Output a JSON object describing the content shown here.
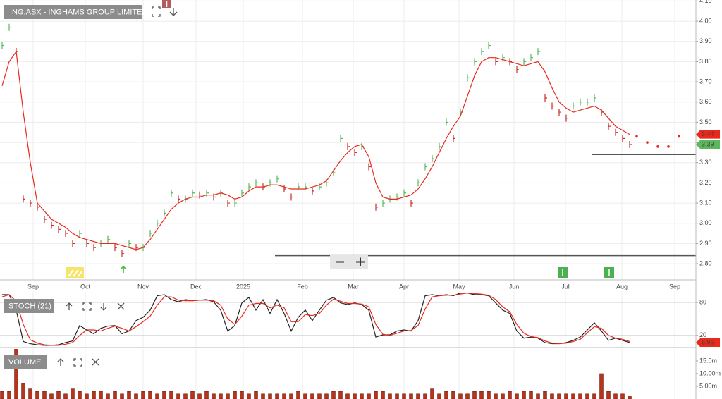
{
  "chart_data": [
    {
      "type": "line",
      "title": "ING.ASX - INGHAMS GROUP LIMITED",
      "xlim": [
        -0.3,
        98.4
      ],
      "xticks": [
        {
          "value": 4.4,
          "label": "Sep"
        },
        {
          "value": 11.8,
          "label": "Oct"
        },
        {
          "value": 20,
          "label": "Nov"
        },
        {
          "value": 27.5,
          "label": "Dec"
        },
        {
          "value": 34.2,
          "label": "2025"
        },
        {
          "value": 42.6,
          "label": "Feb"
        },
        {
          "value": 49.8,
          "label": "Mar"
        },
        {
          "value": 57,
          "label": "Apr"
        },
        {
          "value": 64.8,
          "label": "May"
        },
        {
          "value": 72.6,
          "label": "Jun"
        },
        {
          "value": 79.9,
          "label": "Jul"
        },
        {
          "value": 87.9,
          "label": "Aug"
        },
        {
          "value": 95.4,
          "label": "Sep"
        }
      ],
      "ylim": [
        2.72,
        4.105
      ],
      "yticks": [
        {
          "value": 2.8,
          "label": "2.80"
        },
        {
          "value": 2.9,
          "label": "2.90"
        },
        {
          "value": 3,
          "label": "3.00"
        },
        {
          "value": 3.1,
          "label": "3.10"
        },
        {
          "value": 3.2,
          "label": "3.20"
        },
        {
          "value": 3.3,
          "label": "3.30"
        },
        {
          "value": 3.4,
          "label": "3.40"
        },
        {
          "value": 3.5,
          "label": "3.50"
        },
        {
          "value": 3.6,
          "label": "3.60"
        },
        {
          "value": 3.7,
          "label": "3.70"
        },
        {
          "value": 3.8,
          "label": "3.80"
        },
        {
          "value": 3.9,
          "label": "3.90"
        },
        {
          "value": 4,
          "label": "4.00"
        },
        {
          "value": 4.1,
          "label": "4.10"
        }
      ],
      "grid": true,
      "series": [
        {
          "style": "bars",
          "color": "#5cb85c",
          "down_color": "#c9302c",
          "tag": true,
          "values": [
            3.88,
            3.97,
            3.85,
            3.12,
            3.1,
            3.08,
            3.02,
            2.99,
            2.97,
            2.95,
            2.9,
            2.95,
            2.9,
            2.88,
            2.9,
            2.92,
            2.88,
            2.85,
            2.9,
            2.88,
            2.88,
            2.95,
            3.0,
            3.05,
            3.15,
            3.12,
            3.12,
            3.15,
            3.14,
            3.15,
            3.13,
            3.15,
            3.1,
            3.1,
            3.15,
            3.18,
            3.2,
            3.18,
            3.2,
            3.22,
            3.17,
            3.13,
            3.18,
            3.18,
            3.16,
            3.18,
            3.2,
            3.25,
            3.42,
            3.38,
            3.35,
            3.38,
            3.28,
            3.08,
            3.1,
            3.12,
            3.13,
            3.15,
            3.1,
            3.2,
            3.28,
            3.32,
            3.38,
            3.5,
            3.42,
            3.55,
            3.72,
            3.8,
            3.85,
            3.88,
            3.8,
            3.82,
            3.8,
            3.76,
            3.8,
            3.82,
            3.85,
            3.62,
            3.58,
            3.55,
            3.52,
            3.58,
            3.6,
            3.6,
            3.62,
            3.55,
            3.48,
            3.45,
            3.42,
            3.39
          ]
        },
        {
          "style": "line",
          "color": "#e8291c",
          "tag": true,
          "values": [
            3.68,
            3.8,
            3.85,
            3.55,
            3.3,
            3.1,
            3.06,
            3.02,
            3.0,
            2.98,
            2.95,
            2.93,
            2.92,
            2.91,
            2.9,
            2.9,
            2.9,
            2.89,
            2.88,
            2.87,
            2.88,
            2.92,
            2.97,
            3.02,
            3.07,
            3.1,
            3.12,
            3.13,
            3.13,
            3.14,
            3.14,
            3.15,
            3.14,
            3.12,
            3.13,
            3.16,
            3.18,
            3.18,
            3.19,
            3.19,
            3.18,
            3.17,
            3.17,
            3.17,
            3.18,
            3.19,
            3.21,
            3.26,
            3.31,
            3.35,
            3.38,
            3.39,
            3.33,
            3.2,
            3.13,
            3.12,
            3.12,
            3.13,
            3.14,
            3.17,
            3.22,
            3.28,
            3.35,
            3.42,
            3.48,
            3.53,
            3.63,
            3.73,
            3.8,
            3.82,
            3.82,
            3.81,
            3.8,
            3.79,
            3.78,
            3.79,
            3.8,
            3.75,
            3.67,
            3.6,
            3.57,
            3.55,
            3.56,
            3.57,
            3.58,
            3.56,
            3.52,
            3.48,
            3.46,
            3.44
          ]
        },
        {
          "style": "dots",
          "color": "#e8291c",
          "x": [
            90,
            91.5,
            93,
            94.5,
            96
          ],
          "values": [
            3.43,
            3.4,
            3.38,
            3.38,
            3.43
          ]
        }
      ],
      "hlines": [
        {
          "value": 3.34,
          "from": 83.7
        },
        {
          "value": 2.84,
          "from": 38.7
        }
      ],
      "hline_color": "#555555"
    },
    {
      "type": "line",
      "title": "STOCH (21)",
      "ylim": [
        -2,
        100.4
      ],
      "yticks": [
        20,
        80
      ],
      "grid": true,
      "series": [
        {
          "style": "line",
          "color": "#222222",
          "tag": true,
          "tag_color": "#e8291c",
          "values": [
            94,
            94,
            66,
            9,
            5,
            3,
            2,
            2,
            3,
            7,
            10,
            38,
            30,
            23,
            33,
            37,
            38,
            23,
            28,
            47,
            53,
            66,
            92,
            94,
            85,
            81,
            85,
            83,
            84,
            85,
            81,
            66,
            28,
            38,
            79,
            89,
            66,
            85,
            60,
            85,
            60,
            28,
            53,
            66,
            47,
            66,
            84,
            89,
            79,
            76,
            79,
            76,
            66,
            17,
            21,
            21,
            28,
            30,
            28,
            47,
            92,
            94,
            92,
            94,
            92,
            97,
            97,
            94,
            94,
            92,
            79,
            66,
            60,
            28,
            15,
            17,
            15,
            7,
            5,
            5,
            7,
            11,
            17,
            30,
            43,
            28,
            11,
            15,
            11,
            6.96
          ]
        },
        {
          "style": "line",
          "color": "#e8291c",
          "values": [
            90,
            94,
            82,
            40,
            12,
            6,
            3,
            2,
            2,
            4,
            7,
            20,
            30,
            30,
            28,
            33,
            37,
            33,
            28,
            36,
            45,
            55,
            75,
            90,
            90,
            84,
            83,
            83,
            84,
            84,
            83,
            75,
            50,
            40,
            55,
            75,
            78,
            78,
            70,
            75,
            70,
            45,
            45,
            58,
            56,
            60,
            75,
            86,
            82,
            78,
            78,
            77,
            72,
            40,
            22,
            20,
            24,
            28,
            29,
            38,
            68,
            90,
            92,
            93,
            93,
            95,
            97,
            96,
            95,
            93,
            85,
            72,
            63,
            40,
            24,
            18,
            16,
            10,
            6,
            5,
            6,
            9,
            13,
            25,
            36,
            33,
            20,
            15,
            13,
            9
          ]
        }
      ]
    },
    {
      "type": "bar",
      "title": "VOLUME",
      "ylim": [
        0,
        19.7
      ],
      "yticks": [
        {
          "value": 5,
          "label": "5.00m"
        },
        {
          "value": 10,
          "label": "10.00m"
        },
        {
          "value": 15,
          "label": "15.0m"
        }
      ],
      "color": "#b5341b",
      "values": [
        3,
        3,
        20,
        6,
        4,
        3,
        3,
        2,
        3,
        2,
        4,
        3,
        2,
        3,
        3,
        2,
        3,
        2,
        3,
        2,
        3,
        3,
        2,
        3,
        3,
        2,
        2,
        3,
        2,
        3,
        2,
        2,
        2,
        3,
        3,
        2,
        3,
        2,
        2,
        2,
        2,
        2,
        3,
        2,
        2,
        2,
        2,
        3,
        3,
        2,
        2,
        2,
        2,
        3,
        3,
        2,
        2,
        2,
        2,
        2,
        2,
        4,
        2,
        3,
        3,
        2,
        2,
        3,
        3,
        3,
        2,
        2,
        3,
        2,
        3,
        3,
        2,
        3,
        2,
        2,
        2,
        2,
        2,
        2,
        2,
        10,
        3,
        2,
        2,
        1
      ]
    }
  ]
}
